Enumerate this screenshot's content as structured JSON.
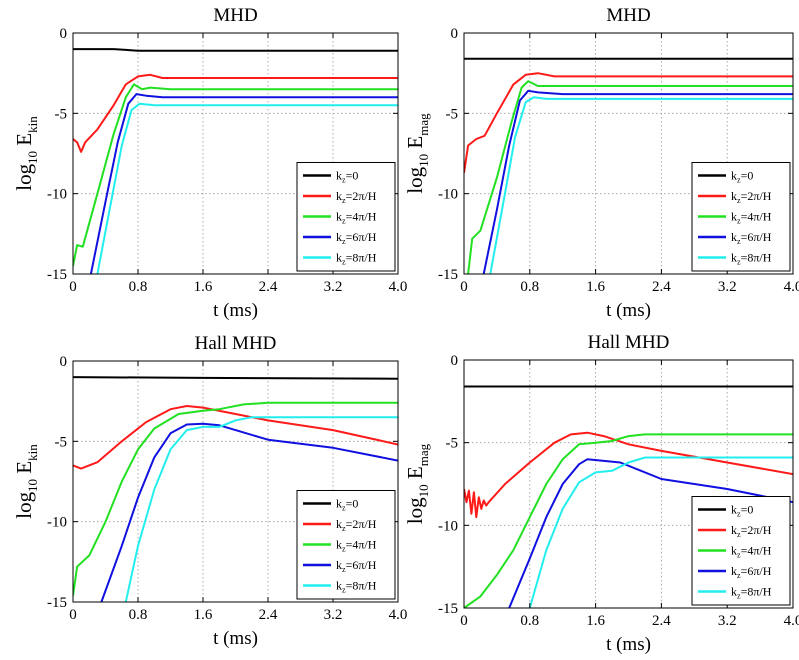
{
  "colors": {
    "kz0": "#000000",
    "kz2": "#ff1a1a",
    "kz4": "#22e022",
    "kz6": "#1010e0",
    "kz8": "#22eeee"
  },
  "chart_data": [
    {
      "type": "line",
      "title": "MHD",
      "xlabel": "t (ms)",
      "ylabel": {
        "base": "log",
        "base_sub": "10",
        "main": " E",
        "main_sub": "kin"
      },
      "xlim": [
        0,
        4.0
      ],
      "ylim": [
        -15,
        0
      ],
      "xticks": [
        "0",
        "0.8",
        "1.6",
        "2.4",
        "3.2",
        "4.0"
      ],
      "yticks": [
        "0",
        "-5",
        "-10",
        "-15"
      ],
      "grid": true,
      "legend_position": "lower-right",
      "series": [
        {
          "name": "k_z=0",
          "label_main": "k",
          "label_sub": "z",
          "label_rest": "=0",
          "color_key": "kz0",
          "points": [
            [
              0,
              -1.0
            ],
            [
              0.5,
              -1.0
            ],
            [
              0.8,
              -1.1
            ],
            [
              1.6,
              -1.1
            ],
            [
              4.0,
              -1.1
            ]
          ]
        },
        {
          "name": "k_z=2π/H",
          "label_main": "k",
          "label_sub": "z",
          "label_rest": "=2π/H",
          "color_key": "kz2",
          "points": [
            [
              0,
              -6.6
            ],
            [
              0.05,
              -6.8
            ],
            [
              0.1,
              -7.4
            ],
            [
              0.15,
              -6.8
            ],
            [
              0.3,
              -6.0
            ],
            [
              0.5,
              -4.5
            ],
            [
              0.65,
              -3.2
            ],
            [
              0.8,
              -2.7
            ],
            [
              0.95,
              -2.6
            ],
            [
              1.1,
              -2.8
            ],
            [
              1.6,
              -2.8
            ],
            [
              4.0,
              -2.8
            ]
          ]
        },
        {
          "name": "k_z=4π/H",
          "label_main": "k",
          "label_sub": "z",
          "label_rest": "=4π/H",
          "color_key": "kz4",
          "points": [
            [
              0,
              -14.5
            ],
            [
              0.05,
              -13.2
            ],
            [
              0.12,
              -13.3
            ],
            [
              0.3,
              -10.0
            ],
            [
              0.5,
              -6.3
            ],
            [
              0.65,
              -4.0
            ],
            [
              0.75,
              -3.2
            ],
            [
              0.85,
              -3.5
            ],
            [
              0.95,
              -3.4
            ],
            [
              1.2,
              -3.5
            ],
            [
              4.0,
              -3.5
            ]
          ]
        },
        {
          "name": "k_z=6π/H",
          "label_main": "k",
          "label_sub": "z",
          "label_rest": "=6π/H",
          "color_key": "kz6",
          "points": [
            [
              0.22,
              -15.0
            ],
            [
              0.4,
              -10.5
            ],
            [
              0.55,
              -6.8
            ],
            [
              0.68,
              -4.4
            ],
            [
              0.78,
              -3.8
            ],
            [
              0.9,
              -3.9
            ],
            [
              1.1,
              -4.0
            ],
            [
              4.0,
              -4.0
            ]
          ]
        },
        {
          "name": "k_z=8π/H",
          "label_main": "k",
          "label_sub": "z",
          "label_rest": "=8π/H",
          "color_key": "kz8",
          "points": [
            [
              0.3,
              -15.0
            ],
            [
              0.45,
              -11.0
            ],
            [
              0.6,
              -7.0
            ],
            [
              0.72,
              -4.8
            ],
            [
              0.82,
              -4.4
            ],
            [
              1.0,
              -4.5
            ],
            [
              4.0,
              -4.5
            ]
          ]
        }
      ]
    },
    {
      "type": "line",
      "title": "MHD",
      "xlabel": "t (ms)",
      "ylabel": {
        "base": "log",
        "base_sub": "10",
        "main": " E",
        "main_sub": "mag"
      },
      "xlim": [
        0,
        4.0
      ],
      "ylim": [
        -15,
        0
      ],
      "xticks": [
        "0",
        "0.8",
        "1.6",
        "2.4",
        "3.2",
        "4.0"
      ],
      "yticks": [
        "0",
        "-5",
        "-10",
        "-15"
      ],
      "grid": true,
      "legend_position": "lower-right",
      "series": [
        {
          "name": "k_z=0",
          "label_main": "k",
          "label_sub": "z",
          "label_rest": "=0",
          "color_key": "kz0",
          "points": [
            [
              0,
              -1.6
            ],
            [
              4.0,
              -1.6
            ]
          ]
        },
        {
          "name": "k_z=2π/H",
          "label_main": "k",
          "label_sub": "z",
          "label_rest": "=2π/H",
          "color_key": "kz2",
          "points": [
            [
              0,
              -8.7
            ],
            [
              0.05,
              -7.0
            ],
            [
              0.15,
              -6.6
            ],
            [
              0.25,
              -6.4
            ],
            [
              0.4,
              -5.0
            ],
            [
              0.6,
              -3.2
            ],
            [
              0.75,
              -2.6
            ],
            [
              0.9,
              -2.5
            ],
            [
              1.1,
              -2.7
            ],
            [
              1.6,
              -2.7
            ],
            [
              4.0,
              -2.7
            ]
          ]
        },
        {
          "name": "k_z=4π/H",
          "label_main": "k",
          "label_sub": "z",
          "label_rest": "=4π/H",
          "color_key": "kz4",
          "points": [
            [
              0.05,
              -15.0
            ],
            [
              0.1,
              -12.8
            ],
            [
              0.2,
              -12.3
            ],
            [
              0.4,
              -9.0
            ],
            [
              0.58,
              -5.5
            ],
            [
              0.7,
              -3.4
            ],
            [
              0.78,
              -3.0
            ],
            [
              0.9,
              -3.3
            ],
            [
              1.2,
              -3.3
            ],
            [
              4.0,
              -3.3
            ]
          ]
        },
        {
          "name": "k_z=6π/H",
          "label_main": "k",
          "label_sub": "z",
          "label_rest": "=6π/H",
          "color_key": "kz6",
          "points": [
            [
              0.24,
              -15.0
            ],
            [
              0.4,
              -11.0
            ],
            [
              0.55,
              -7.0
            ],
            [
              0.68,
              -4.2
            ],
            [
              0.78,
              -3.6
            ],
            [
              0.9,
              -3.7
            ],
            [
              1.2,
              -3.8
            ],
            [
              4.0,
              -3.8
            ]
          ]
        },
        {
          "name": "k_z=8π/H",
          "label_main": "k",
          "label_sub": "z",
          "label_rest": "=8π/H",
          "color_key": "kz8",
          "points": [
            [
              0.32,
              -15.0
            ],
            [
              0.48,
              -10.5
            ],
            [
              0.62,
              -6.5
            ],
            [
              0.75,
              -4.3
            ],
            [
              0.85,
              -4.0
            ],
            [
              1.0,
              -4.1
            ],
            [
              4.0,
              -4.1
            ]
          ]
        }
      ]
    },
    {
      "type": "line",
      "title": "Hall MHD",
      "xlabel": "t (ms)",
      "ylabel": {
        "base": "log",
        "base_sub": "10",
        "main": " E",
        "main_sub": "kin"
      },
      "xlim": [
        0,
        4.0
      ],
      "ylim": [
        -15,
        0
      ],
      "xticks": [
        "0",
        "0.8",
        "1.6",
        "2.4",
        "3.2",
        "4.0"
      ],
      "yticks": [
        "0",
        "-5",
        "-10",
        "-15"
      ],
      "grid": true,
      "legend_position": "lower-right",
      "series": [
        {
          "name": "k_z=0",
          "label_main": "k",
          "label_sub": "z",
          "label_rest": "=0",
          "color_key": "kz0",
          "points": [
            [
              0,
              -1.0
            ],
            [
              1.6,
              -1.05
            ],
            [
              4.0,
              -1.1
            ]
          ]
        },
        {
          "name": "k_z=2π/H",
          "label_main": "k",
          "label_sub": "z",
          "label_rest": "=2π/H",
          "color_key": "kz2",
          "points": [
            [
              0,
              -6.5
            ],
            [
              0.1,
              -6.7
            ],
            [
              0.3,
              -6.3
            ],
            [
              0.6,
              -5.0
            ],
            [
              0.9,
              -3.8
            ],
            [
              1.2,
              -3.0
            ],
            [
              1.4,
              -2.8
            ],
            [
              1.6,
              -2.9
            ],
            [
              2.0,
              -3.3
            ],
            [
              2.4,
              -3.7
            ],
            [
              3.2,
              -4.3
            ],
            [
              4.0,
              -5.2
            ]
          ]
        },
        {
          "name": "k_z=4π/H",
          "label_main": "k",
          "label_sub": "z",
          "label_rest": "=4π/H",
          "color_key": "kz4",
          "points": [
            [
              0,
              -14.6
            ],
            [
              0.05,
              -12.8
            ],
            [
              0.2,
              -12.1
            ],
            [
              0.4,
              -10.0
            ],
            [
              0.6,
              -7.5
            ],
            [
              0.8,
              -5.5
            ],
            [
              1.0,
              -4.2
            ],
            [
              1.3,
              -3.3
            ],
            [
              1.6,
              -3.1
            ],
            [
              1.8,
              -3.0
            ],
            [
              2.1,
              -2.7
            ],
            [
              2.4,
              -2.6
            ],
            [
              4.0,
              -2.6
            ]
          ]
        },
        {
          "name": "k_z=6π/H",
          "label_main": "k",
          "label_sub": "z",
          "label_rest": "=6π/H",
          "color_key": "kz6",
          "points": [
            [
              0.35,
              -15.0
            ],
            [
              0.6,
              -11.5
            ],
            [
              0.8,
              -8.5
            ],
            [
              1.0,
              -6.0
            ],
            [
              1.2,
              -4.5
            ],
            [
              1.4,
              -3.95
            ],
            [
              1.6,
              -3.9
            ],
            [
              1.8,
              -4.0
            ],
            [
              2.0,
              -4.3
            ],
            [
              2.4,
              -4.9
            ],
            [
              3.2,
              -5.4
            ],
            [
              4.0,
              -6.2
            ]
          ]
        },
        {
          "name": "k_z=8π/H",
          "label_main": "k",
          "label_sub": "z",
          "label_rest": "=8π/H",
          "color_key": "kz8",
          "points": [
            [
              0.65,
              -15.0
            ],
            [
              0.8,
              -11.5
            ],
            [
              1.0,
              -8.0
            ],
            [
              1.2,
              -5.5
            ],
            [
              1.4,
              -4.3
            ],
            [
              1.6,
              -4.1
            ],
            [
              1.8,
              -4.1
            ],
            [
              2.0,
              -3.7
            ],
            [
              2.2,
              -3.5
            ],
            [
              4.0,
              -3.5
            ]
          ]
        }
      ]
    },
    {
      "type": "line",
      "title": "Hall MHD",
      "xlabel": "t (ms)",
      "ylabel": {
        "base": "log",
        "base_sub": "10",
        "main": " E",
        "main_sub": "mag"
      },
      "xlim": [
        0,
        4.0
      ],
      "ylim": [
        -15,
        0
      ],
      "xticks": [
        "0",
        "0.8",
        "1.6",
        "2.4",
        "3.2",
        "4.0"
      ],
      "yticks": [
        "0",
        "-5",
        "-10",
        "-15"
      ],
      "grid": true,
      "legend_position": "lower-right",
      "series": [
        {
          "name": "k_z=0",
          "label_main": "k",
          "label_sub": "z",
          "label_rest": "=0",
          "color_key": "kz0",
          "points": [
            [
              0,
              -1.6
            ],
            [
              4.0,
              -1.6
            ]
          ]
        },
        {
          "name": "k_z=2π/H",
          "label_main": "k",
          "label_sub": "z",
          "label_rest": "=2π/H",
          "color_key": "kz2",
          "points": [
            [
              0,
              -7.8
            ],
            [
              0.03,
              -8.6
            ],
            [
              0.06,
              -7.9
            ],
            [
              0.09,
              -9.3
            ],
            [
              0.12,
              -8.0
            ],
            [
              0.15,
              -9.5
            ],
            [
              0.18,
              -8.3
            ],
            [
              0.21,
              -9.0
            ],
            [
              0.24,
              -8.5
            ],
            [
              0.27,
              -8.8
            ],
            [
              0.3,
              -8.6
            ],
            [
              0.5,
              -7.5
            ],
            [
              0.8,
              -6.2
            ],
            [
              1.1,
              -5.0
            ],
            [
              1.3,
              -4.5
            ],
            [
              1.5,
              -4.4
            ],
            [
              1.7,
              -4.6
            ],
            [
              2.0,
              -5.1
            ],
            [
              2.4,
              -5.5
            ],
            [
              3.2,
              -6.2
            ],
            [
              4.0,
              -6.9
            ]
          ]
        },
        {
          "name": "k_z=4π/H",
          "label_main": "k",
          "label_sub": "z",
          "label_rest": "=4π/H",
          "color_key": "kz4",
          "points": [
            [
              0,
              -15.0
            ],
            [
              0.2,
              -14.3
            ],
            [
              0.4,
              -13.0
            ],
            [
              0.6,
              -11.5
            ],
            [
              0.8,
              -9.5
            ],
            [
              1.0,
              -7.5
            ],
            [
              1.2,
              -6.0
            ],
            [
              1.4,
              -5.1
            ],
            [
              1.6,
              -5.0
            ],
            [
              1.8,
              -4.9
            ],
            [
              2.0,
              -4.6
            ],
            [
              2.2,
              -4.5
            ],
            [
              4.0,
              -4.5
            ]
          ]
        },
        {
          "name": "k_z=6π/H",
          "label_main": "k",
          "label_sub": "z",
          "label_rest": "=6π/H",
          "color_key": "kz6",
          "points": [
            [
              0.55,
              -15.0
            ],
            [
              0.8,
              -12.0
            ],
            [
              1.0,
              -9.5
            ],
            [
              1.2,
              -7.5
            ],
            [
              1.4,
              -6.3
            ],
            [
              1.5,
              -6.0
            ],
            [
              1.7,
              -6.1
            ],
            [
              1.9,
              -6.2
            ],
            [
              2.1,
              -6.6
            ],
            [
              2.4,
              -7.2
            ],
            [
              3.2,
              -7.8
            ],
            [
              4.0,
              -8.6
            ]
          ]
        },
        {
          "name": "k_z=8π/H",
          "label_main": "k",
          "label_sub": "z",
          "label_rest": "=8π/H",
          "color_key": "kz8",
          "points": [
            [
              0.8,
              -15.0
            ],
            [
              1.0,
              -11.5
            ],
            [
              1.2,
              -9.0
            ],
            [
              1.4,
              -7.4
            ],
            [
              1.6,
              -6.8
            ],
            [
              1.8,
              -6.7
            ],
            [
              2.0,
              -6.2
            ],
            [
              2.2,
              -5.9
            ],
            [
              4.0,
              -5.9
            ]
          ]
        }
      ]
    }
  ]
}
